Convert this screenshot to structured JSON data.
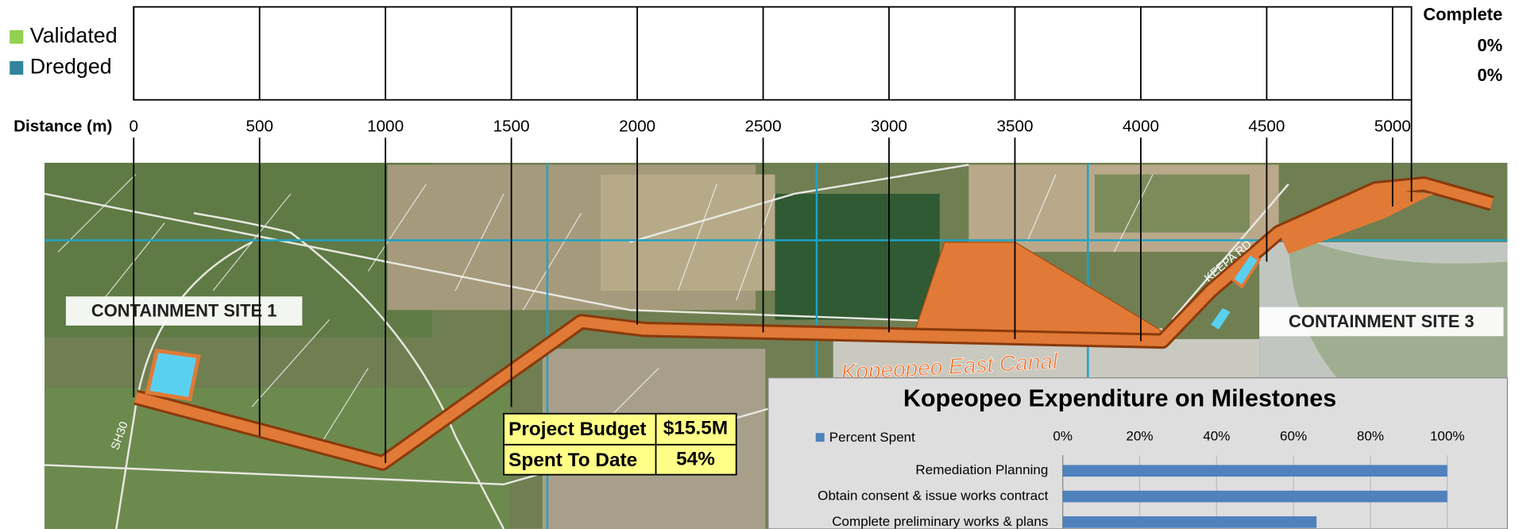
{
  "chart_data": [
    {
      "type": "strip",
      "x_label": "Distance (m)",
      "xlim": [
        0,
        5075
      ],
      "xticks": [
        0,
        500,
        1000,
        1500,
        2000,
        2500,
        3000,
        3500,
        4000,
        4500,
        5000
      ],
      "values_header": "Complete",
      "series": [
        {
          "name": "Validated",
          "color": "#92d050",
          "values": [
            0
          ],
          "value_labels": [
            "0%"
          ]
        },
        {
          "name": "Dredged",
          "color": "#31849b",
          "values": [
            0
          ],
          "value_labels": [
            "0%"
          ]
        }
      ]
    },
    {
      "type": "hbar",
      "title": "Kopeopeo Expenditure on Milestones",
      "categories": [
        "Remediation Planning",
        "Obtain consent & issue works contract",
        "Complete preliminary works & plans"
      ],
      "series": [
        {
          "name": "Percent Spent",
          "color": "#4f81bd",
          "values": [
            100,
            100,
            66
          ]
        }
      ],
      "xlim": [
        0,
        100
      ],
      "xticks": [
        {
          "value": 0,
          "label": "0%"
        },
        {
          "value": 20,
          "label": "20%"
        },
        {
          "value": 40,
          "label": "40%"
        },
        {
          "value": 60,
          "label": "60%"
        },
        {
          "value": 80,
          "label": "80%"
        },
        {
          "value": 100,
          "label": "100%"
        }
      ],
      "grid": true
    }
  ],
  "map": {
    "labels": [
      "CONTAINMENT SITE 1",
      "CONTAINMENT SITE 3",
      "Kopeopeo East Canal",
      "KEEPA RD",
      "SH30"
    ]
  },
  "budget": {
    "rows": [
      [
        "Project Budget",
        "$15.5M"
      ],
      [
        "Spent To Date",
        "54%"
      ]
    ]
  }
}
